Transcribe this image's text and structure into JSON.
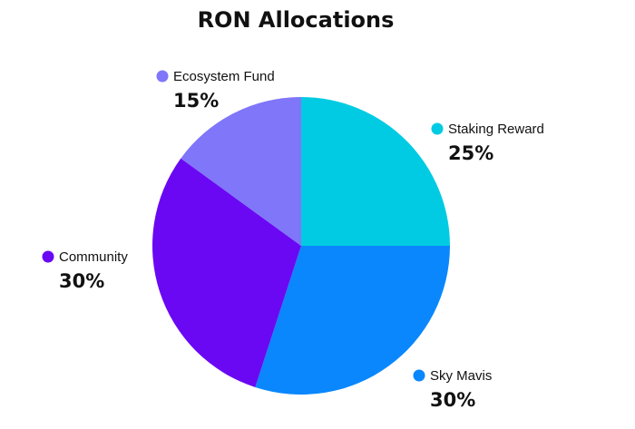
{
  "chart_data": {
    "type": "pie",
    "title": "RON Allocations",
    "unit": "%",
    "slices": [
      {
        "label": "Staking Reward",
        "value": 25,
        "value_label": "25%",
        "color": "#00CBE3"
      },
      {
        "label": "Sky Mavis",
        "value": 30,
        "value_label": "30%",
        "color": "#0A87FD"
      },
      {
        "label": "Community",
        "value": 30,
        "value_label": "30%",
        "color": "#6A08F4"
      },
      {
        "label": "Ecosystem Fund",
        "value": 15,
        "value_label": "15%",
        "color": "#7F76F9"
      }
    ],
    "start": "12 o'clock",
    "direction": "clockwise",
    "legend": "labels beside slices"
  }
}
